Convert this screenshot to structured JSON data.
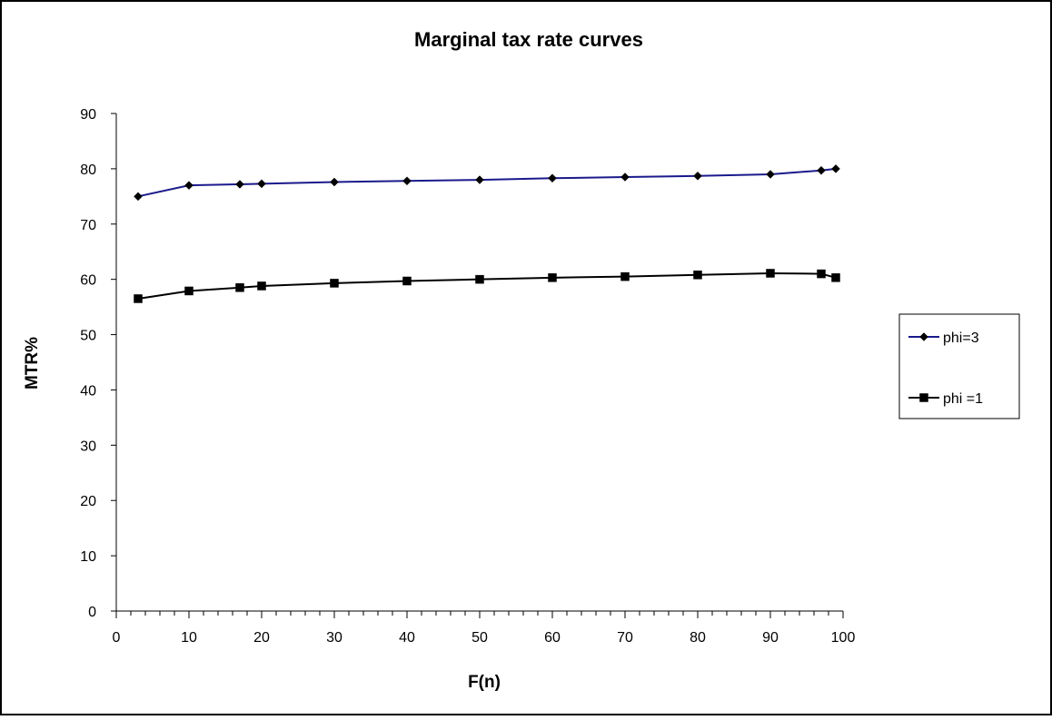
{
  "chart_data": {
    "type": "line",
    "title": "Marginal tax rate curves",
    "xlabel": "F(n)",
    "ylabel": "MTR%",
    "xlim": [
      0,
      100
    ],
    "ylim": [
      0,
      90
    ],
    "x_ticks": [
      0,
      10,
      20,
      30,
      40,
      50,
      60,
      70,
      80,
      90,
      100
    ],
    "y_ticks": [
      0,
      10,
      20,
      30,
      40,
      50,
      60,
      70,
      80,
      90
    ],
    "x_minor_step": 2,
    "grid": false,
    "legend_position": "right",
    "series": [
      {
        "name": "phi=3",
        "color": "#1a1a8c",
        "marker": "diamond",
        "x": [
          3,
          10,
          17,
          20,
          30,
          40,
          50,
          60,
          70,
          80,
          90,
          97,
          99
        ],
        "y": [
          75.0,
          77.0,
          77.2,
          77.3,
          77.6,
          77.8,
          78.0,
          78.3,
          78.5,
          78.7,
          79.0,
          79.7,
          80.0
        ]
      },
      {
        "name": "phi =1",
        "color": "#000000",
        "marker": "square",
        "x": [
          3,
          10,
          17,
          20,
          30,
          40,
          50,
          60,
          70,
          80,
          90,
          97,
          99
        ],
        "y": [
          56.5,
          57.9,
          58.5,
          58.8,
          59.3,
          59.7,
          60.0,
          60.3,
          60.5,
          60.8,
          61.1,
          61.0,
          60.3
        ]
      }
    ]
  }
}
